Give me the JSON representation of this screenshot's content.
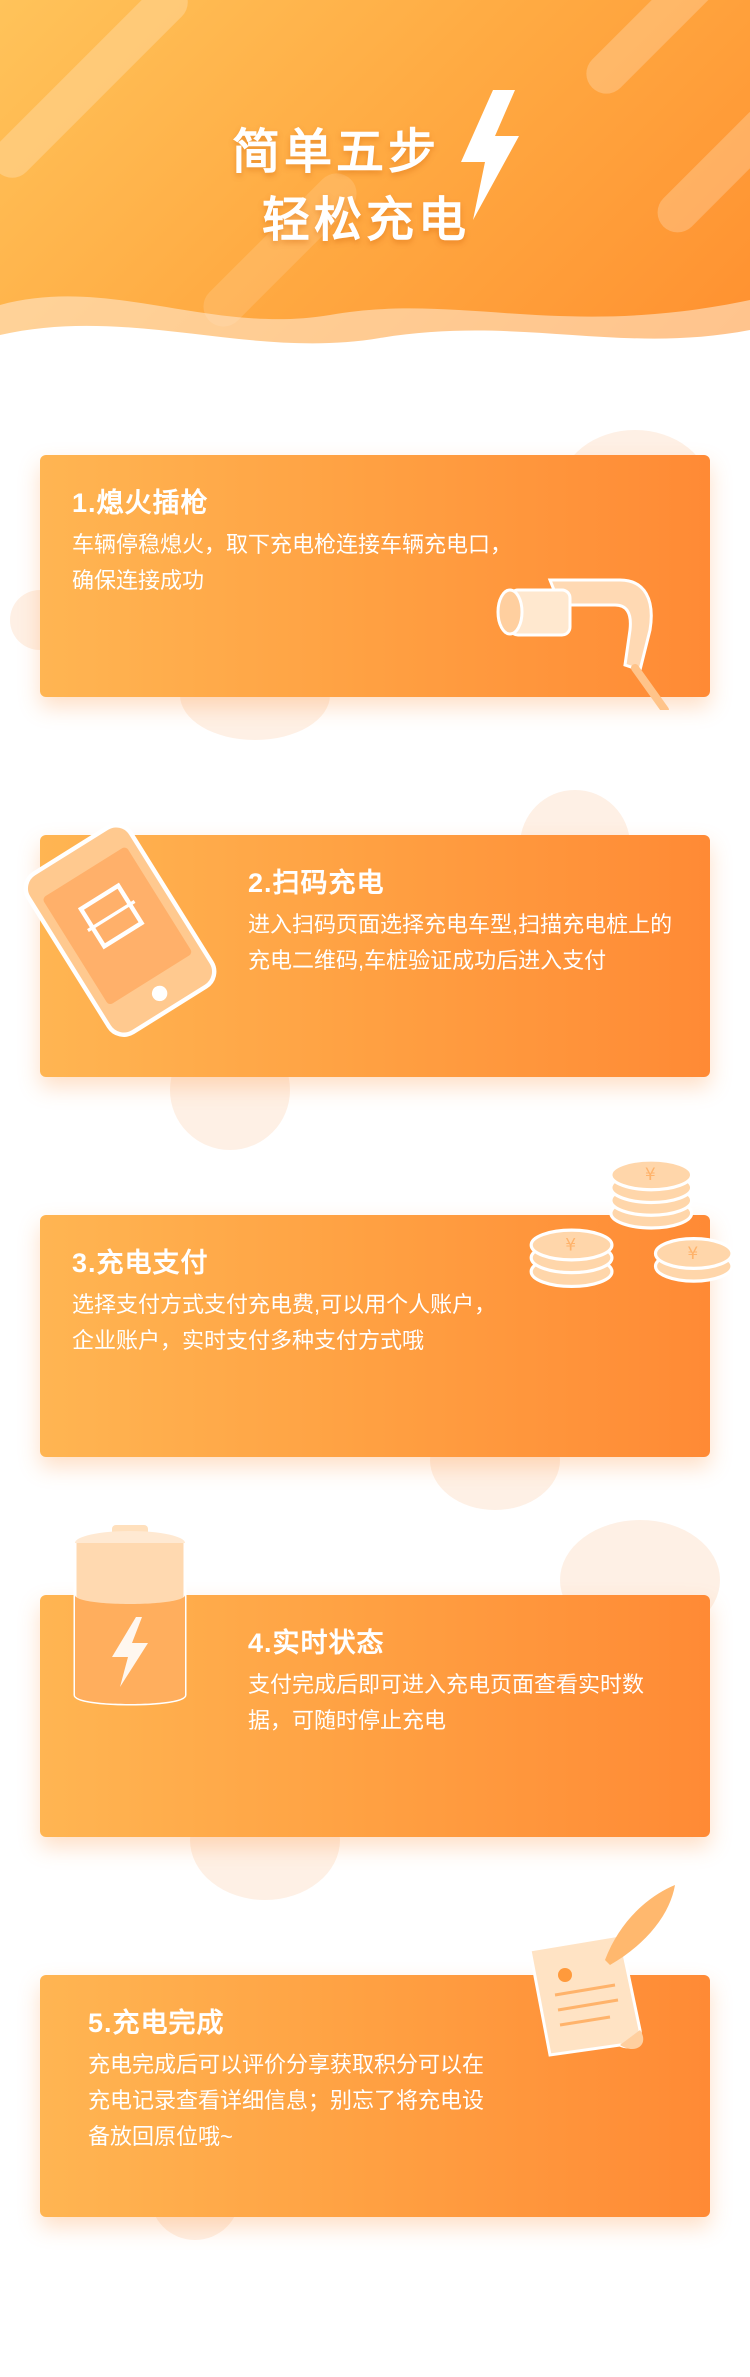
{
  "header": {
    "title_line1": "简单五步",
    "title_line2": "轻松充电",
    "icon": "lightning-bolt-icon"
  },
  "steps": [
    {
      "title": "1.熄火插枪",
      "desc": "车辆停稳熄火，取下充电枪连接车辆充电口，确保连接成功",
      "icon": "charging-gun-icon"
    },
    {
      "title": "2.扫码充电",
      "desc": "进入扫码页面选择充电车型,扫描充电桩上的充电二维码,车桩验证成功后进入支付",
      "icon": "phone-qr-icon"
    },
    {
      "title": "3.充电支付",
      "desc": "选择支付方式支付充电费,可以用个人账户，企业账户，实时支付多种支付方式哦",
      "icon": "yuan-coins-icon"
    },
    {
      "title": "4.实时状态",
      "desc": "支付完成后即可进入充电页面查看实时数据，可随时停止充电",
      "icon": "battery-charging-icon"
    },
    {
      "title": "5.充电完成",
      "desc": "充电完成后可以评价分享获取积分可以在充电记录查看详细信息；别忘了将充电设备放回原位哦~",
      "icon": "scroll-quill-icon"
    }
  ],
  "colors": {
    "accent": "#ff9a3c",
    "accent_light": "#ffb552",
    "accent_dark": "#ff8a35"
  }
}
